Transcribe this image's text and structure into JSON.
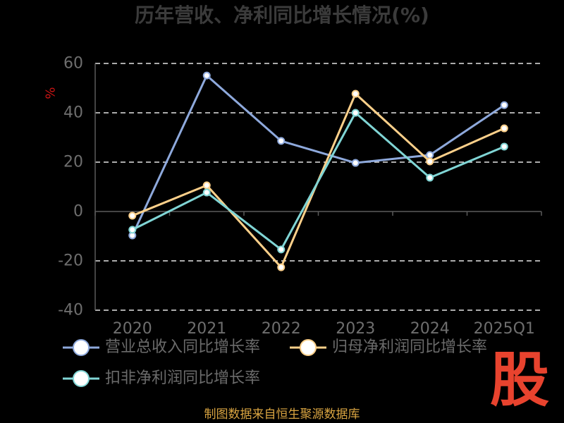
{
  "chart_data": {
    "type": "line",
    "title": "历年营收、净利同比增长情况(%)",
    "ylabel": "%",
    "categories": [
      "2020",
      "2021",
      "2022",
      "2023",
      "2024",
      "2025Q1"
    ],
    "yticks": [
      60,
      40,
      20,
      0,
      -20,
      -40
    ],
    "ylim": [
      -40,
      60
    ],
    "grid": true,
    "legend_position": "bottom",
    "series": [
      {
        "name": "营业总收入同比增长率",
        "color": "#8ea9dc",
        "values": [
          -9.7,
          55.1,
          28.6,
          19.7,
          22.9,
          43.1
        ]
      },
      {
        "name": "归母净利润同比增长率",
        "color": "#fdd08a",
        "values": [
          -1.7,
          10.6,
          -22.6,
          47.7,
          20.3,
          33.7
        ]
      },
      {
        "name": "扣非净利润同比增长率",
        "color": "#80d5d5",
        "values": [
          -7.4,
          7.7,
          -15.4,
          40.0,
          13.7,
          26.3
        ]
      }
    ]
  },
  "footer": {
    "source_text": "制图数据来自恒生聚源数据库"
  },
  "logo": {
    "text": "股"
  },
  "colors": {
    "background": "#000000",
    "footer_text": "#d9a441",
    "logo": "#e8432e",
    "ylabel": "#cc1414"
  }
}
